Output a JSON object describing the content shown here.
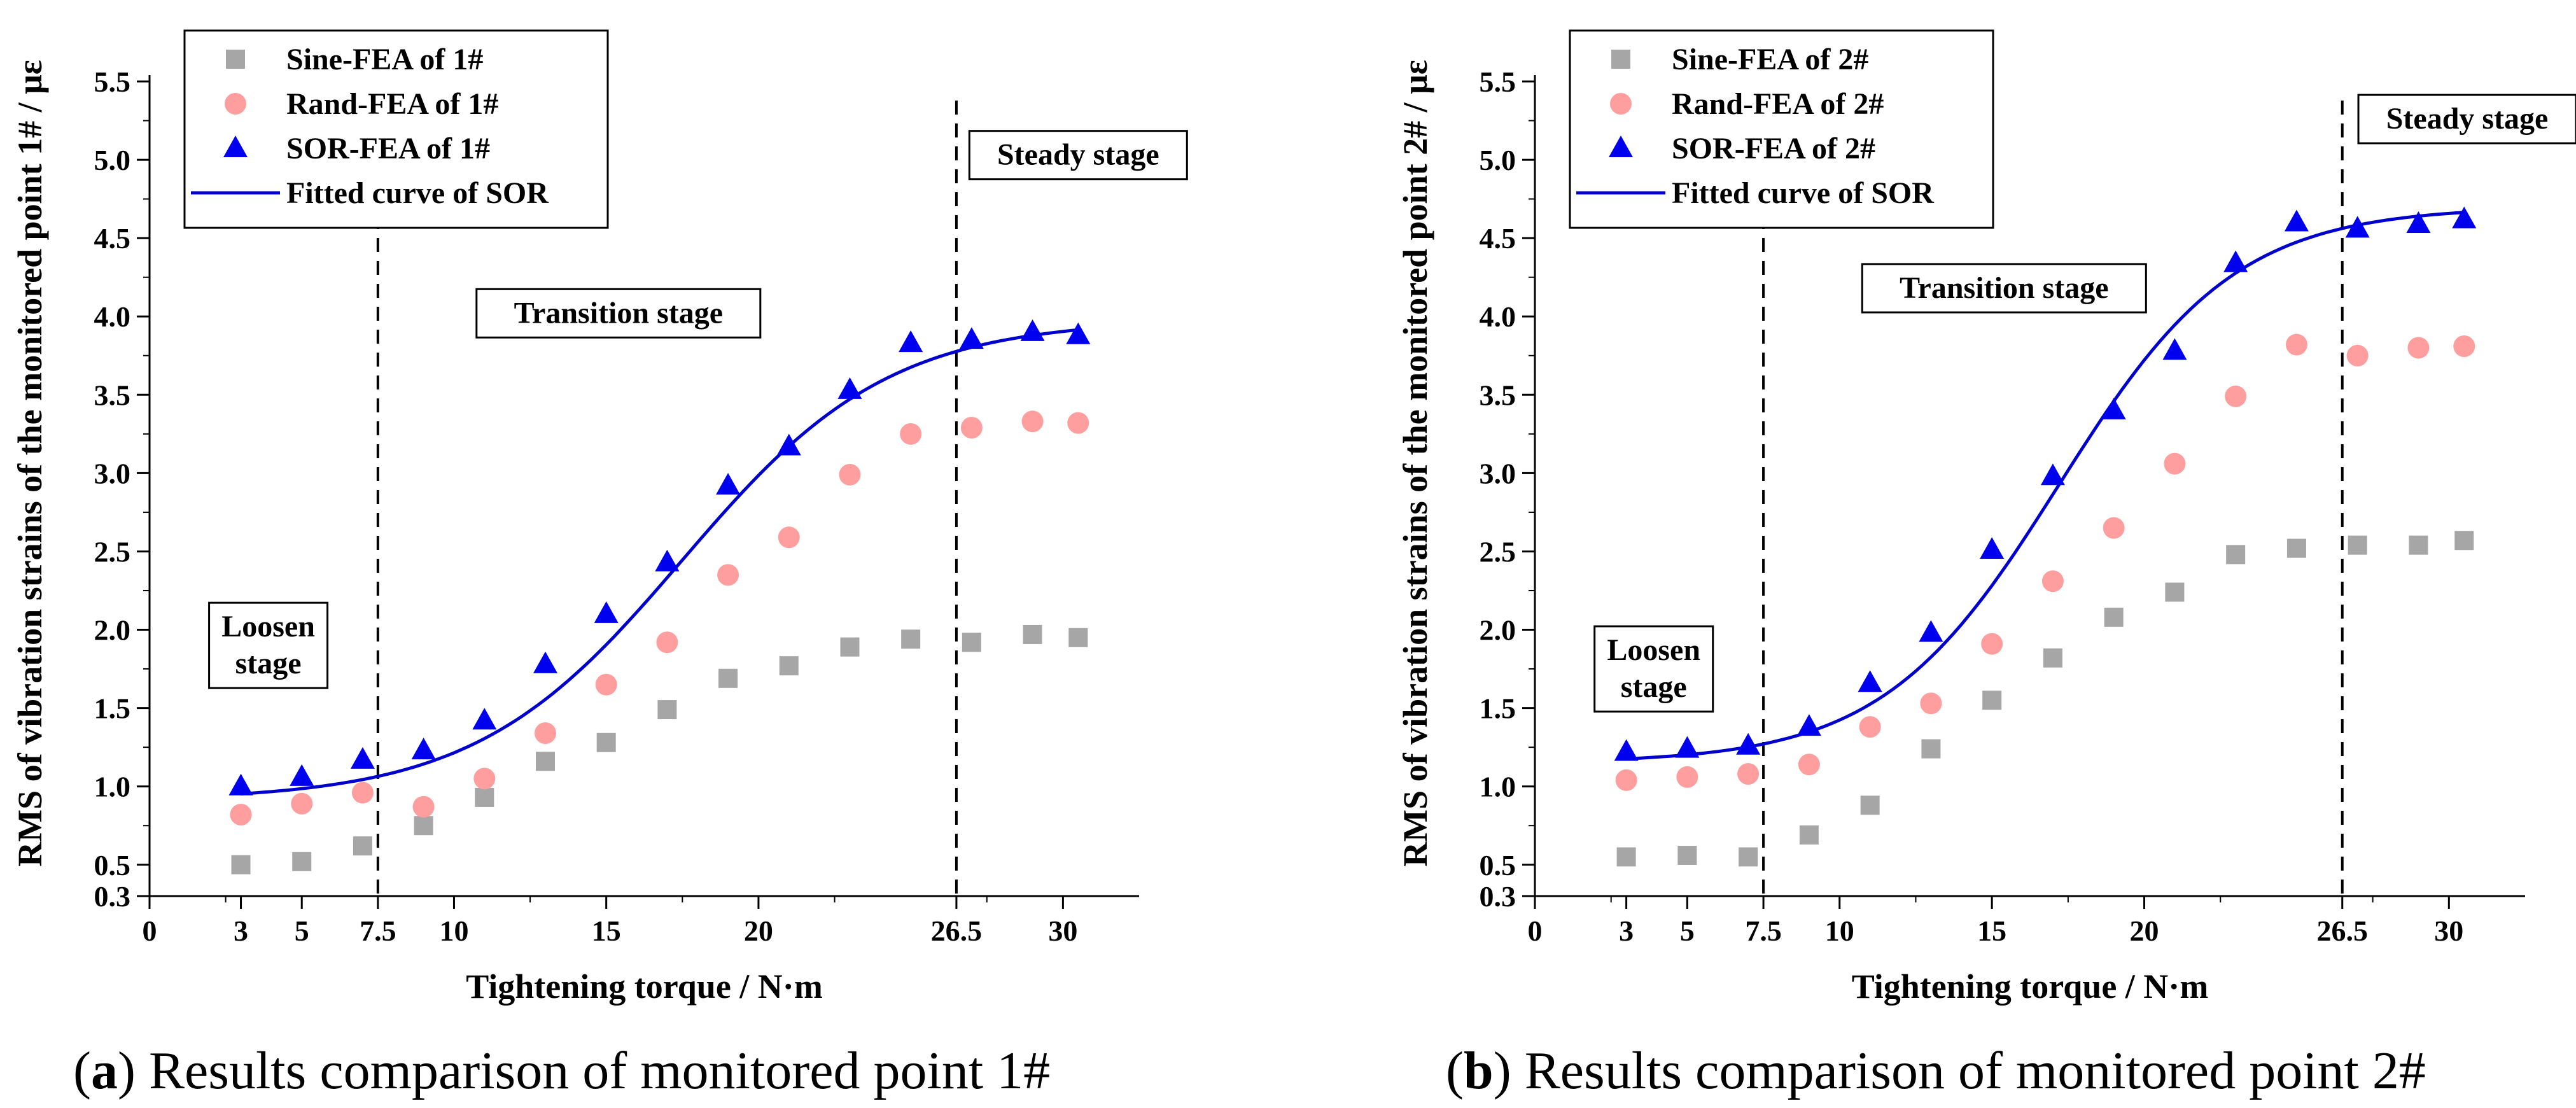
{
  "chart_data": [
    {
      "type": "scatter",
      "panel": "(a)",
      "caption_letter": "a",
      "caption_text": " Results comparison of monitored point 1#",
      "xlabel": "Tightening torque / N·m",
      "ylabel": "RMS of vibration strains of the monitored point 1# / με",
      "xlim": [
        0,
        32.5
      ],
      "ylim": [
        0.3,
        5.5
      ],
      "x_ticks": [
        0,
        3,
        5,
        7.5,
        10,
        15,
        20,
        26.5,
        30
      ],
      "x_tick_labels": [
        "0",
        "3",
        "5",
        "7.5",
        "10",
        "15",
        "20",
        "26.5",
        "30"
      ],
      "y_ticks": [
        0.3,
        0.5,
        1.0,
        1.5,
        2.0,
        2.5,
        3.0,
        3.5,
        4.0,
        4.5,
        5.0,
        5.5
      ],
      "y_tick_labels": [
        "0.3",
        "0.5",
        "1.0",
        "1.5",
        "2.0",
        "2.5",
        "3.0",
        "3.5",
        "4.0",
        "4.5",
        "5.0",
        "5.5"
      ],
      "x": [
        3,
        5,
        7,
        9,
        11,
        13,
        15,
        17,
        19,
        21,
        23,
        25,
        27,
        29,
        30.5
      ],
      "series": [
        {
          "name": "Sine-FEA of 1#",
          "marker": "square",
          "color": "#a6a6a6",
          "values": [
            0.5,
            0.52,
            0.62,
            0.75,
            0.93,
            1.16,
            1.28,
            1.49,
            1.69,
            1.77,
            1.89,
            1.94,
            1.92,
            1.97,
            1.95
          ]
        },
        {
          "name": "Rand-FEA of 1#",
          "marker": "circle",
          "color": "#ff9e9e",
          "values": [
            0.82,
            0.89,
            0.96,
            0.87,
            1.05,
            1.34,
            1.65,
            1.92,
            2.35,
            2.59,
            2.99,
            3.25,
            3.29,
            3.33,
            3.32
          ]
        },
        {
          "name": "SOR-FEA of 1#",
          "marker": "triangle",
          "color": "#0000ee",
          "values": [
            1.0,
            1.06,
            1.17,
            1.23,
            1.42,
            1.78,
            2.1,
            2.43,
            2.92,
            3.17,
            3.53,
            3.83,
            3.85,
            3.9,
            3.88
          ]
        },
        {
          "name": "Fitted curve of SOR",
          "marker": "line",
          "color": "#0000cc",
          "fit": {
            "base": 0.91,
            "amplitude": 3.07,
            "center": 17.5,
            "scale": 3.4
          }
        }
      ],
      "vlines": [
        7.5,
        26.5
      ],
      "annotations": [
        {
          "lines": [
            "Loosen",
            "stage"
          ],
          "x": 3.9,
          "y": 1.9
        },
        {
          "lines": [
            "Transition stage"
          ],
          "x": 15.4,
          "y": 4.02
        },
        {
          "lines": [
            "Steady stage"
          ],
          "x": 30.5,
          "y": 5.03
        }
      ],
      "legend": "top-left"
    },
    {
      "type": "scatter",
      "panel": "(b)",
      "caption_letter": "b",
      "caption_text": " Results comparison of monitored point 2#",
      "xlabel": "Tightening torque / N·m",
      "ylabel": "RMS of vibration strains of the monitored point 2# / με",
      "xlim": [
        0,
        32.5
      ],
      "ylim": [
        0.3,
        5.5
      ],
      "x_ticks": [
        0,
        3,
        5,
        7.5,
        10,
        15,
        20,
        26.5,
        30
      ],
      "x_tick_labels": [
        "0",
        "3",
        "5",
        "7.5",
        "10",
        "15",
        "20",
        "26.5",
        "30"
      ],
      "y_ticks": [
        0.3,
        0.5,
        1.0,
        1.5,
        2.0,
        2.5,
        3.0,
        3.5,
        4.0,
        4.5,
        5.0,
        5.5
      ],
      "y_tick_labels": [
        "0.3",
        "0.5",
        "1.0",
        "1.5",
        "2.0",
        "2.5",
        "3.0",
        "3.5",
        "4.0",
        "4.5",
        "5.0",
        "5.5"
      ],
      "x": [
        3,
        5,
        7,
        9,
        11,
        13,
        15,
        17,
        19,
        21,
        23,
        25,
        27,
        29,
        30.5
      ],
      "series": [
        {
          "name": "Sine-FEA of 2#",
          "marker": "square",
          "color": "#a6a6a6",
          "values": [
            0.55,
            0.56,
            0.55,
            0.69,
            0.88,
            1.24,
            1.55,
            1.82,
            2.08,
            2.24,
            2.48,
            2.52,
            2.54,
            2.54,
            2.57
          ]
        },
        {
          "name": "Rand-FEA of 2#",
          "marker": "circle",
          "color": "#ff9e9e",
          "values": [
            1.04,
            1.06,
            1.08,
            1.14,
            1.38,
            1.53,
            1.91,
            2.31,
            2.65,
            3.06,
            3.49,
            3.82,
            3.75,
            3.8,
            3.81
          ]
        },
        {
          "name": "SOR-FEA of 2#",
          "marker": "triangle",
          "color": "#0000ee",
          "values": [
            1.22,
            1.24,
            1.26,
            1.38,
            1.66,
            1.98,
            2.51,
            2.98,
            3.4,
            3.78,
            4.34,
            4.6,
            4.56,
            4.59,
            4.62
          ]
        },
        {
          "name": "Fitted curve of SOR",
          "marker": "line",
          "color": "#0000cc",
          "fit": {
            "base": 1.15,
            "amplitude": 3.55,
            "center": 17.2,
            "scale": 2.9
          }
        }
      ],
      "vlines": [
        7.5,
        26.5
      ],
      "annotations": [
        {
          "lines": [
            "Loosen",
            "stage"
          ],
          "x": 3.9,
          "y": 1.75
        },
        {
          "lines": [
            "Transition stage"
          ],
          "x": 15.4,
          "y": 4.18
        },
        {
          "lines": [
            "Steady stage"
          ],
          "x": 30.6,
          "y": 5.26
        }
      ],
      "legend": "top-left"
    }
  ]
}
